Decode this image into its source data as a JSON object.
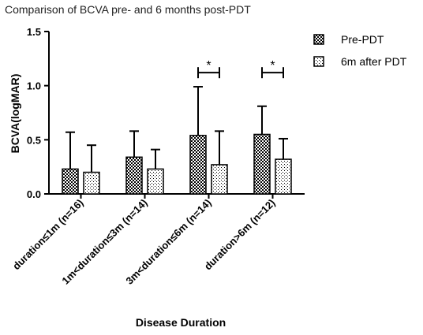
{
  "chart_data": {
    "type": "bar",
    "title": "Comparison of BCVA pre- and 6 months post-PDT",
    "xlabel": "Disease Duration",
    "ylabel": "BCVA(logMAR)",
    "ylim": [
      0,
      1.5
    ],
    "yticks": [
      0,
      0.5,
      1.0,
      1.5
    ],
    "ytick_labels": [
      "0.0",
      "0.5",
      "1.0",
      "1.5"
    ],
    "categories": [
      "duration≤1m (n=16)",
      "1m<duration≤3m (n=14)",
      "3m<duration≤6m (n=14)",
      "duration>6m (n=12)"
    ],
    "series": [
      {
        "name": "Pre-PDT",
        "pattern": "crosshatch",
        "values": [
          0.23,
          0.34,
          0.54,
          0.55
        ],
        "error_upper": [
          0.57,
          0.58,
          0.99,
          0.81
        ]
      },
      {
        "name": "6m after PDT",
        "pattern": "dots",
        "values": [
          0.2,
          0.23,
          0.27,
          0.32
        ],
        "error_upper": [
          0.45,
          0.41,
          0.58,
          0.51
        ]
      }
    ],
    "significance": [
      {
        "category_index": 2,
        "label": "*"
      },
      {
        "category_index": 3,
        "label": "*"
      }
    ],
    "legend_position": "top-right",
    "grid": false
  },
  "colors": {
    "axis": "#000000",
    "bar_stroke": "#000000",
    "pattern_dark": "#000000",
    "pattern_light": "#ffffff",
    "text": "#000000"
  }
}
